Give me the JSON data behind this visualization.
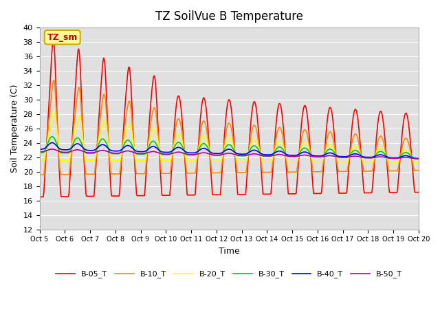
{
  "title": "TZ SoilVue B Temperature",
  "xlabel": "Time",
  "ylabel": "Soil Temperature (C)",
  "ylim": [
    12,
    40
  ],
  "yticks": [
    12,
    14,
    16,
    18,
    20,
    22,
    24,
    26,
    28,
    30,
    32,
    34,
    36,
    38,
    40
  ],
  "bg_color": "#e0e0e0",
  "annotation_text": "TZ_sm",
  "annotation_bg": "#ffff99",
  "annotation_border": "#ccaa00",
  "series_names": [
    "B-05_T",
    "B-10_T",
    "B-20_T",
    "B-30_T",
    "B-40_T",
    "B-50_T"
  ],
  "series_colors": [
    "#ff0000",
    "#ff8800",
    "#ffff00",
    "#00cc00",
    "#0000ff",
    "#aa00aa"
  ],
  "series_lw": [
    1.2,
    1.2,
    1.2,
    1.2,
    1.2,
    1.2
  ],
  "xtick_labels": [
    "Oct 5",
    "Oct 6",
    "Oct 7",
    "Oct 8",
    "Oct 9",
    "Oct 10",
    "Oct 11",
    "Oct 12",
    "Oct 13",
    "Oct 14",
    "Oct 15",
    "Oct 16",
    "Oct 17",
    "Oct 18",
    "Oct 19",
    "Oct 20"
  ],
  "num_days": 15,
  "pts_per_day": 48
}
